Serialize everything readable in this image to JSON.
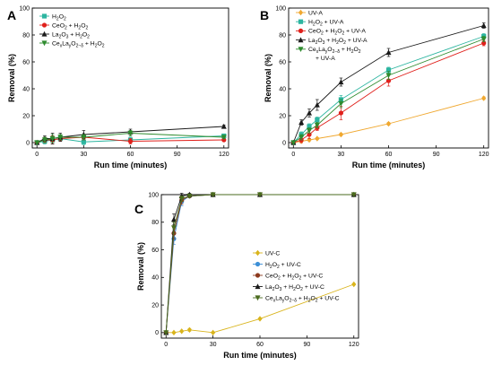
{
  "chart_data": [
    {
      "type": "line",
      "panel": "A",
      "xlabel": "Run time (minutes)",
      "ylabel": "Removal (%)",
      "xlim": [
        -3,
        123
      ],
      "ylim": [
        -4,
        100
      ],
      "xticks": [
        0,
        30,
        60,
        90,
        120
      ],
      "yticks": [
        0,
        20,
        40,
        60,
        80,
        100
      ],
      "legend_position": "top-left",
      "series": [
        {
          "key": "h2o2",
          "legend": [
            {
              "t": "H"
            },
            {
              "t": "2",
              "s": "sub"
            },
            {
              "t": "O"
            },
            {
              "t": "2",
              "s": "sub"
            }
          ],
          "color": "#2cb5a0",
          "marker": "square",
          "x": [
            0,
            5,
            10,
            15,
            30,
            60,
            120
          ],
          "y": [
            0,
            1,
            2,
            3,
            0.5,
            2,
            5
          ],
          "err": [
            0.5,
            2,
            3,
            2,
            2,
            2,
            1
          ]
        },
        {
          "key": "ceo2_h2o2",
          "legend": [
            {
              "t": "CeO"
            },
            {
              "t": "2",
              "s": "sub"
            },
            {
              "t": " + H"
            },
            {
              "t": "2",
              "s": "sub"
            },
            {
              "t": "O"
            },
            {
              "t": "2",
              "s": "sub"
            }
          ],
          "color": "#e0201b",
          "marker": "circle",
          "x": [
            0,
            5,
            10,
            15,
            30,
            60,
            120
          ],
          "y": [
            0,
            2,
            2,
            3,
            4,
            1,
            2
          ],
          "err": [
            0.5,
            2,
            3,
            2,
            2,
            2,
            1
          ]
        },
        {
          "key": "la2o3_h2o2",
          "legend": [
            {
              "t": "La"
            },
            {
              "t": "2",
              "s": "sub"
            },
            {
              "t": "O"
            },
            {
              "t": "3",
              "s": "sub"
            },
            {
              "t": " + H"
            },
            {
              "t": "2",
              "s": "sub"
            },
            {
              "t": "O"
            },
            {
              "t": "2",
              "s": "sub"
            }
          ],
          "color": "#1a1a1a",
          "marker": "triangle-up",
          "x": [
            0,
            5,
            10,
            15,
            30,
            60,
            120
          ],
          "y": [
            0,
            3,
            3,
            4,
            6,
            8,
            12
          ],
          "err": [
            0.5,
            2,
            4,
            3,
            3,
            2,
            1
          ]
        },
        {
          "key": "celao_h2o2",
          "legend": [
            {
              "t": "Ce"
            },
            {
              "t": "x",
              "s": "sub"
            },
            {
              "t": "La"
            },
            {
              "t": "y",
              "s": "sub"
            },
            {
              "t": "O"
            },
            {
              "t": "2−δ",
              "s": "sub"
            },
            {
              "t": " + H"
            },
            {
              "t": "2",
              "s": "sub"
            },
            {
              "t": "O"
            },
            {
              "t": "2",
              "s": "sub"
            }
          ],
          "color": "#2e8b2e",
          "marker": "triangle-down",
          "x": [
            0,
            5,
            10,
            15,
            30,
            60,
            120
          ],
          "y": [
            0,
            2,
            3,
            4,
            4,
            7,
            4
          ],
          "err": [
            0.5,
            2,
            3,
            2,
            2,
            2,
            1
          ]
        }
      ]
    },
    {
      "type": "line",
      "panel": "B",
      "xlabel": "Run time (minutes)",
      "ylabel": "Removal (%)",
      "xlim": [
        -3,
        123
      ],
      "ylim": [
        -4,
        100
      ],
      "xticks": [
        0,
        30,
        60,
        90,
        120
      ],
      "yticks": [
        0,
        20,
        40,
        60,
        80,
        100
      ],
      "legend_position": "top-left",
      "series": [
        {
          "key": "uva",
          "legend": [
            {
              "t": "UV-A"
            }
          ],
          "color": "#f0a830",
          "marker": "diamond",
          "x": [
            0,
            5,
            10,
            15,
            30,
            60,
            120
          ],
          "y": [
            0,
            1,
            2,
            3,
            6,
            14,
            33
          ],
          "err": [
            0.5,
            0.8,
            0.8,
            0.8,
            1,
            1,
            1
          ]
        },
        {
          "key": "h2o2_uva",
          "legend": [
            {
              "t": "H"
            },
            {
              "t": "2",
              "s": "sub"
            },
            {
              "t": "O"
            },
            {
              "t": "2",
              "s": "sub"
            },
            {
              "t": " + UV-A"
            }
          ],
          "color": "#2cb5a0",
          "marker": "square",
          "x": [
            0,
            5,
            10,
            15,
            30,
            60,
            120
          ],
          "y": [
            0,
            6,
            12,
            17,
            32,
            54,
            79
          ],
          "err": [
            0.5,
            2,
            2,
            2,
            3,
            2,
            2
          ]
        },
        {
          "key": "ceo2_h2o2_uva",
          "legend": [
            {
              "t": "CeO"
            },
            {
              "t": "2",
              "s": "sub"
            },
            {
              "t": " + H"
            },
            {
              "t": "2",
              "s": "sub"
            },
            {
              "t": "O"
            },
            {
              "t": "2",
              "s": "sub"
            },
            {
              "t": " + UV-A"
            }
          ],
          "color": "#e0201b",
          "marker": "circle",
          "x": [
            0,
            5,
            10,
            15,
            30,
            60,
            120
          ],
          "y": [
            0,
            2,
            6,
            11,
            22,
            46,
            74
          ],
          "err": [
            0.5,
            2,
            3,
            2,
            5,
            4,
            2
          ]
        },
        {
          "key": "la2o3_h2o2_uva",
          "legend": [
            {
              "t": "La"
            },
            {
              "t": "2",
              "s": "sub"
            },
            {
              "t": "O"
            },
            {
              "t": "3",
              "s": "sub"
            },
            {
              "t": " + H"
            },
            {
              "t": "2",
              "s": "sub"
            },
            {
              "t": "O"
            },
            {
              "t": "2",
              "s": "sub"
            },
            {
              "t": " + UV-A"
            }
          ],
          "color": "#1a1a1a",
          "marker": "triangle-up",
          "x": [
            0,
            5,
            10,
            15,
            30,
            60,
            120
          ],
          "y": [
            0,
            15,
            22,
            28,
            45,
            67,
            87
          ],
          "err": [
            0.5,
            2,
            3,
            4,
            3,
            3,
            2
          ]
        },
        {
          "key": "celao_h2o2_uva",
          "legend": [
            {
              "t": "Ce"
            },
            {
              "t": "x",
              "s": "sub"
            },
            {
              "t": "La"
            },
            {
              "t": "y",
              "s": "sub"
            },
            {
              "t": "O"
            },
            {
              "t": "2−δ",
              "s": "sub"
            },
            {
              "t": " + H"
            },
            {
              "t": "2",
              "s": "sub"
            },
            {
              "t": "O"
            },
            {
              "t": "2",
              "s": "sub"
            }
          ],
          "legend_line2": [
            {
              "t": "+ UV-A"
            }
          ],
          "color": "#2e8b2e",
          "marker": "triangle-down",
          "x": [
            0,
            5,
            10,
            15,
            30,
            60,
            120
          ],
          "y": [
            0,
            4,
            9,
            13,
            29,
            50,
            77
          ],
          "err": [
            0.5,
            2,
            2,
            2,
            3,
            3,
            2
          ]
        }
      ]
    },
    {
      "type": "line",
      "panel": "C",
      "xlabel": "Run time (minutes)",
      "ylabel": "Removal (%)",
      "xlim": [
        -3,
        123
      ],
      "ylim": [
        -4,
        100
      ],
      "xticks": [
        0,
        30,
        60,
        90,
        120
      ],
      "yticks": [
        0,
        20,
        40,
        60,
        80,
        100
      ],
      "legend_position": "center-right",
      "series": [
        {
          "key": "uvc",
          "legend": [
            {
              "t": "UV-C"
            }
          ],
          "color": "#d9b41c",
          "marker": "diamond",
          "x": [
            0,
            5,
            10,
            15,
            30,
            60,
            120
          ],
          "y": [
            0,
            0,
            1,
            2,
            0,
            10,
            35
          ],
          "err": [
            0.3,
            0.5,
            0.5,
            1,
            0.5,
            0.5,
            0.5
          ]
        },
        {
          "key": "h2o2_uvc",
          "legend": [
            {
              "t": "H"
            },
            {
              "t": "2",
              "s": "sub"
            },
            {
              "t": "O"
            },
            {
              "t": "2",
              "s": "sub"
            },
            {
              "t": " + UV-C"
            }
          ],
          "color": "#3c8fd6",
          "marker": "circle",
          "x": [
            0,
            5,
            10,
            15,
            30,
            60,
            120
          ],
          "y": [
            0,
            68,
            95,
            99,
            100,
            100,
            100
          ],
          "err": [
            0.3,
            4,
            3,
            1,
            0.3,
            0.3,
            0.3
          ]
        },
        {
          "key": "ceo2_h2o2_uvc",
          "legend": [
            {
              "t": "CeO"
            },
            {
              "t": "2",
              "s": "sub"
            },
            {
              "t": " + H"
            },
            {
              "t": "2",
              "s": "sub"
            },
            {
              "t": "O"
            },
            {
              "t": "2",
              "s": "sub"
            },
            {
              "t": " + UV-C"
            }
          ],
          "color": "#8c3a1e",
          "marker": "circle",
          "x": [
            0,
            5,
            10,
            15,
            30,
            60,
            120
          ],
          "y": [
            0,
            72,
            96,
            99,
            100,
            100,
            100
          ],
          "err": [
            0.3,
            4,
            3,
            1,
            0.3,
            0.3,
            0.3
          ]
        },
        {
          "key": "la2o3_h2o2_uvc",
          "legend": [
            {
              "t": "La"
            },
            {
              "t": "2",
              "s": "sub"
            },
            {
              "t": "O"
            },
            {
              "t": "3",
              "s": "sub"
            },
            {
              "t": " + H"
            },
            {
              "t": "2",
              "s": "sub"
            },
            {
              "t": "O"
            },
            {
              "t": "2",
              "s": "sub"
            },
            {
              "t": " + UV-C"
            }
          ],
          "color": "#1a1a1a",
          "marker": "triangle-up",
          "x": [
            0,
            5,
            10,
            15,
            30,
            60,
            120
          ],
          "y": [
            0,
            82,
            99,
            100,
            100,
            100,
            100
          ],
          "err": [
            0.3,
            4,
            2,
            1,
            0.3,
            0.3,
            0.3
          ]
        },
        {
          "key": "celao_h2o2_uvc",
          "legend": [
            {
              "t": "Ce"
            },
            {
              "t": "x",
              "s": "sub"
            },
            {
              "t": "La"
            },
            {
              "t": "y",
              "s": "sub"
            },
            {
              "t": "O"
            },
            {
              "t": "2−δ",
              "s": "sub"
            },
            {
              "t": " + H"
            },
            {
              "t": "2",
              "s": "sub"
            },
            {
              "t": "O"
            },
            {
              "t": "2",
              "s": "sub"
            },
            {
              "t": " + UV-C"
            }
          ],
          "color": "#4a6b1e",
          "marker": "triangle-down",
          "x": [
            0,
            5,
            10,
            15,
            30,
            60,
            120
          ],
          "y": [
            0,
            76,
            97,
            99,
            100,
            100,
            100
          ],
          "err": [
            0.3,
            4,
            2,
            1,
            0.3,
            0.3,
            0.3
          ]
        }
      ]
    }
  ]
}
